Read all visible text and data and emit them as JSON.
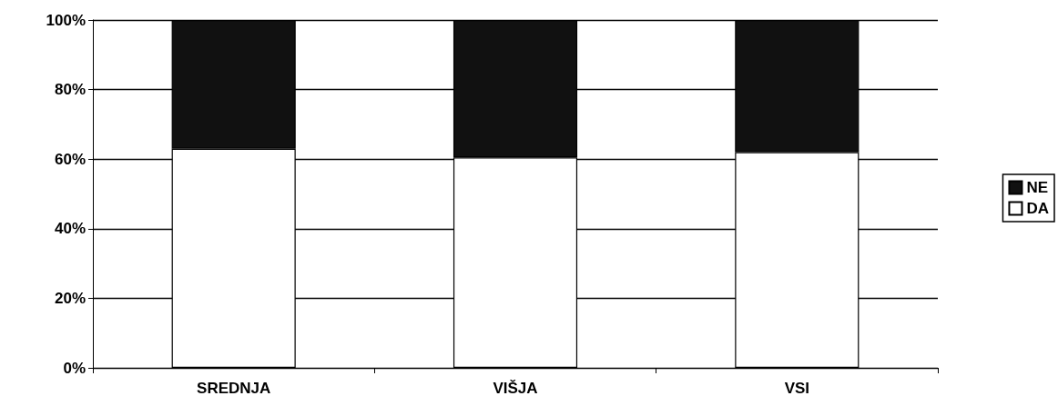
{
  "chart_data": {
    "type": "bar",
    "stacked": true,
    "categories": [
      "SREDNJA",
      "VIŠJA",
      "VSI"
    ],
    "series": [
      {
        "name": "DA",
        "color": "#ffffff",
        "values": [
          63,
          60.5,
          62
        ]
      },
      {
        "name": "NE",
        "color": "#111111",
        "values": [
          37,
          39.5,
          38
        ]
      }
    ],
    "ylim": [
      0,
      100
    ],
    "yticks": [
      {
        "value": 0,
        "label": "0%"
      },
      {
        "value": 20,
        "label": "20%"
      },
      {
        "value": 40,
        "label": "40%"
      },
      {
        "value": 60,
        "label": "60%"
      },
      {
        "value": 80,
        "label": "80%"
      },
      {
        "value": 100,
        "label": "100%"
      }
    ],
    "grid": "y",
    "legend": "right"
  }
}
